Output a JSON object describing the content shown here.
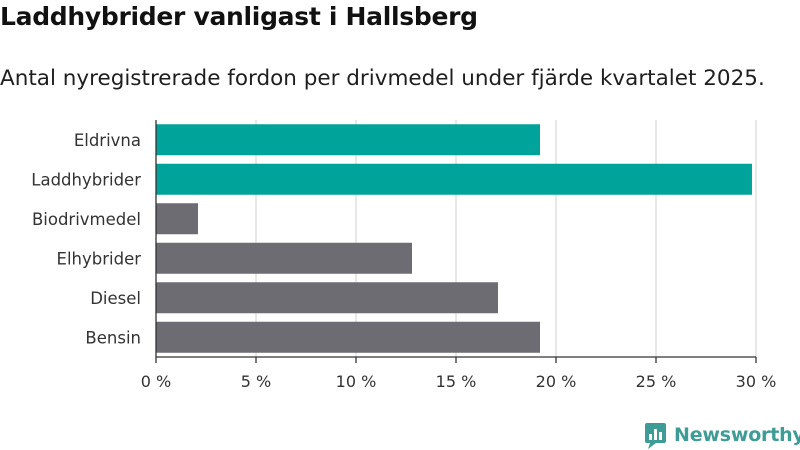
{
  "header": {
    "title": "Laddhybrider vanligast i Hallsberg",
    "subtitle": "Antal nyregistrerade fordon per drivmedel under fjärde kvartalet 2025."
  },
  "brand": {
    "name": "Newsworthy",
    "icon": "newsworthy-logo-icon"
  },
  "colors": {
    "highlight": "#00a39a",
    "default": "#6d6c73",
    "grid": "#dcdcdc",
    "axis": "#333333"
  },
  "chart_data": {
    "type": "bar",
    "orientation": "horizontal",
    "title": "Laddhybrider vanligast i Hallsberg",
    "subtitle": "Antal nyregistrerade fordon per drivmedel under fjärde kvartalet 2025.",
    "xlabel": "",
    "ylabel": "",
    "categories": [
      "Eldrivna",
      "Laddhybrider",
      "Biodrivmedel",
      "Elhybrider",
      "Diesel",
      "Bensin"
    ],
    "values": [
      19.2,
      29.8,
      2.1,
      12.8,
      17.1,
      19.2
    ],
    "highlighted": [
      true,
      true,
      false,
      false,
      false,
      false
    ],
    "unit": "%",
    "xlim": [
      0,
      30
    ],
    "ticks": [
      0,
      5,
      10,
      15,
      20,
      25,
      30
    ],
    "tick_labels": [
      "0 %",
      "5 %",
      "10 %",
      "15 %",
      "20 %",
      "25 %",
      "30 %"
    ],
    "grid": true
  }
}
